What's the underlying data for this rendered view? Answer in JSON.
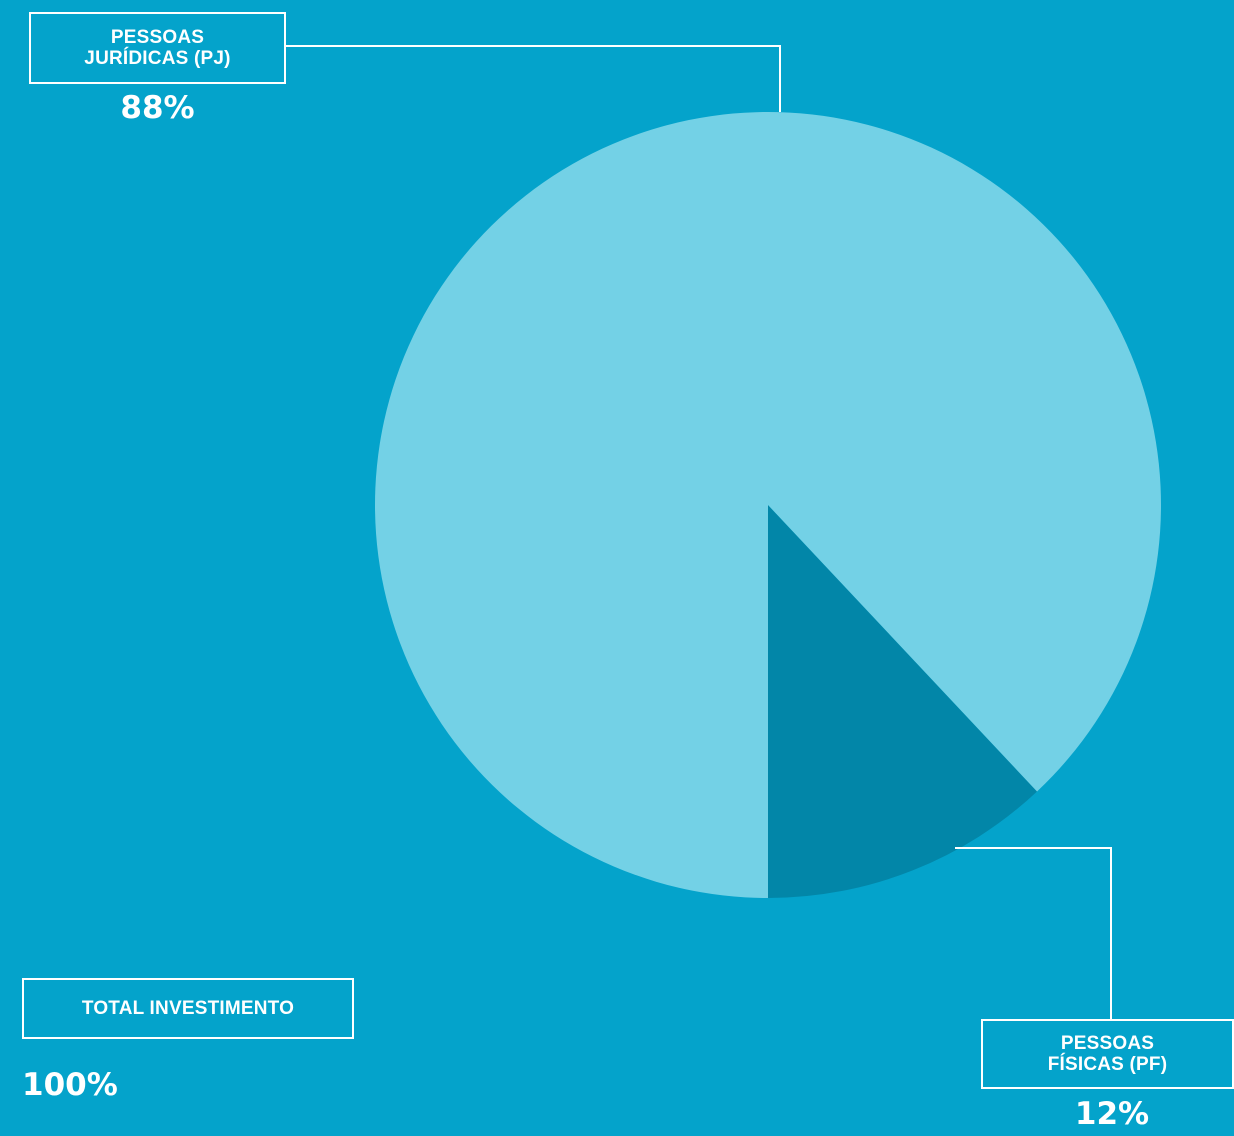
{
  "colors": {
    "background": "#04A3CB",
    "pj_slice": "#73D1E6",
    "pf_slice": "#0286A8",
    "line": "#FFFFFF"
  },
  "chart_data": {
    "type": "pie",
    "slices": [
      {
        "label": "PESSOAS\nJURÍDICAS (PJ)",
        "value": 88,
        "value_label": "88%",
        "color": "#73D1E6"
      },
      {
        "label": "PESSOAS\nFÍSICAS (PF)",
        "value": 12,
        "value_label": "12%",
        "color": "#0286A8"
      }
    ],
    "total": {
      "label": "TOTAL INVESTIMENTO",
      "value": 100,
      "value_label": "100%"
    }
  }
}
